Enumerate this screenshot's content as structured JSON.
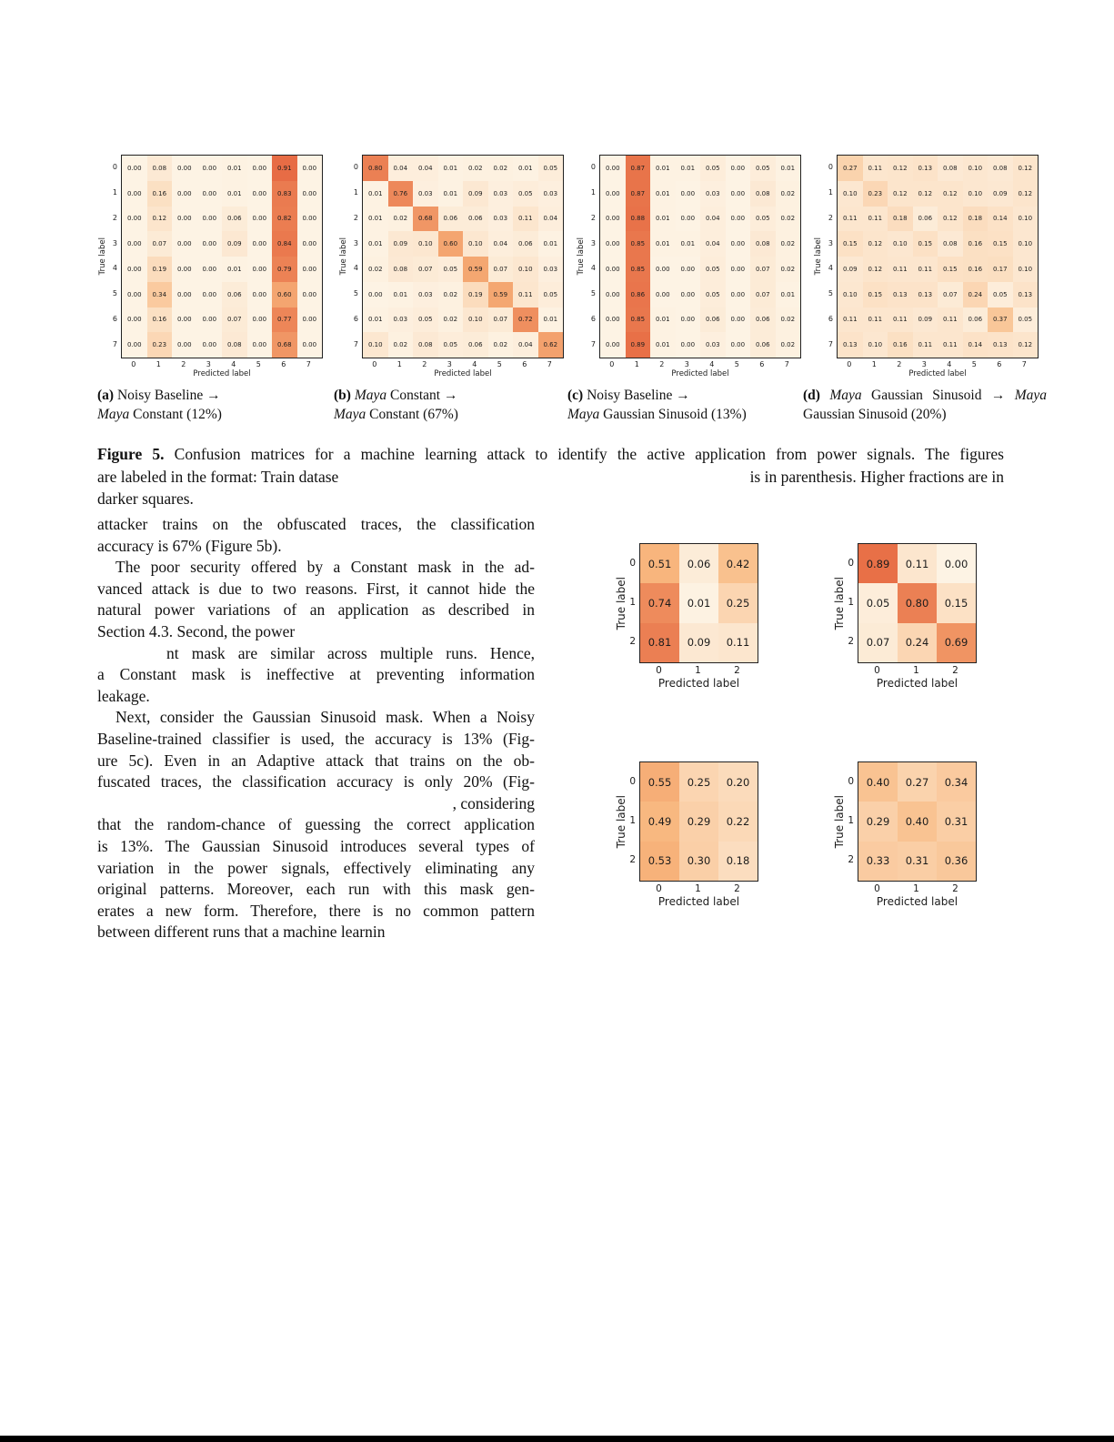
{
  "colors": {
    "heat_stops": [
      "#fdf3e4",
      "#f8b77e",
      "#e35c38"
    ],
    "cell_text": "#1c1c1c",
    "grid_border": "#222222"
  },
  "figure_caption": {
    "line1_bold": "Figure 5.",
    "line1_rest": " Confusion matrices for a machine learning attack to identify the active application from power signals. The figures",
    "line2_left": "are labeled in the format: Train datase",
    "line2_right": "is in parenthesis. Higher fractions are in",
    "line3": "darker squares."
  },
  "body_lines": [
    {
      "text": "attacker trains on the obfuscated traces, the classification",
      "align": "jf",
      "indent": 0
    },
    {
      "text": "accuracy is 67% (Figure 5b).",
      "align": "ll",
      "indent": 0
    },
    {
      "text": "The poor security offered by a Constant mask in the ad-",
      "align": "jf",
      "indent": 20
    },
    {
      "text": "vanced attack is due to two reasons. First, it cannot hide the",
      "align": "jf",
      "indent": 0
    },
    {
      "text": "natural power variations of an application as described in",
      "align": "jf",
      "indent": 0
    },
    {
      "text": "Section 4.3. Second, the power",
      "align": "ll",
      "indent": 0
    },
    {
      "text": "nt mask are similar across multiple runs. Hence,",
      "align": "jf",
      "indent": 76
    },
    {
      "text": "a Constant mask is ineffective at preventing information",
      "align": "jf",
      "indent": 0
    },
    {
      "text": "leakage.",
      "align": "ll",
      "indent": 0
    },
    {
      "text": "Next, consider the Gaussian Sinusoid mask. When a Noisy",
      "align": "jf",
      "indent": 20
    },
    {
      "text": "Baseline-trained classifier is used, the accuracy is 13% (Fig-",
      "align": "jf",
      "indent": 0
    },
    {
      "text": "ure 5c). Even in an Adaptive attack that trains on the ob-",
      "align": "jf",
      "indent": 0
    },
    {
      "text": "fuscated traces, the classification accuracy is only 20% (Fig-",
      "align": "jf",
      "indent": 0
    },
    {
      "text": ", considering",
      "align": "rr",
      "indent": 0
    },
    {
      "text": "that the random-chance of guessing the correct application",
      "align": "jf",
      "indent": 0
    },
    {
      "text": "is 13%. The Gaussian Sinusoid introduces several types of",
      "align": "jf",
      "indent": 0
    },
    {
      "text": "variation in the power signals, effectively eliminating any",
      "align": "jf",
      "indent": 0
    },
    {
      "text": "original patterns. Moreover, each run with this mask gen-",
      "align": "jf",
      "indent": 0
    },
    {
      "text": "erates a new form. Therefore, there is no common pattern",
      "align": "jf",
      "indent": 0
    },
    {
      "text": "between different runs that a machine learnin",
      "align": "ll",
      "indent": 0
    }
  ],
  "chart_data": [
    {
      "id": "a",
      "type": "heatmap",
      "title": "(a) Noisy Baseline → Maya Constant (12%)",
      "accuracy": "12%",
      "xlabel": "Predicted label",
      "ylabel": "True label",
      "x_ticks": [
        "0",
        "1",
        "2",
        "3",
        "4",
        "5",
        "6",
        "7"
      ],
      "y_ticks": [
        "0",
        "1",
        "2",
        "3",
        "4",
        "5",
        "6",
        "7"
      ],
      "values": [
        [
          0.0,
          0.08,
          0.0,
          0.0,
          0.01,
          0.0,
          0.91,
          0.0
        ],
        [
          0.0,
          0.16,
          0.0,
          0.0,
          0.01,
          0.0,
          0.83,
          0.0
        ],
        [
          0.0,
          0.12,
          0.0,
          0.0,
          0.06,
          0.0,
          0.82,
          0.0
        ],
        [
          0.0,
          0.07,
          0.0,
          0.0,
          0.09,
          0.0,
          0.84,
          0.0
        ],
        [
          0.0,
          0.19,
          0.0,
          0.0,
          0.01,
          0.0,
          0.79,
          0.0
        ],
        [
          0.0,
          0.34,
          0.0,
          0.0,
          0.06,
          0.0,
          0.6,
          0.0
        ],
        [
          0.0,
          0.16,
          0.0,
          0.0,
          0.07,
          0.0,
          0.77,
          0.0
        ],
        [
          0.0,
          0.23,
          0.0,
          0.0,
          0.08,
          0.0,
          0.68,
          0.0
        ]
      ],
      "caption_lines": [
        [
          {
            "t": "(a)",
            "b": 1
          },
          {
            "t": " Noisy Baseline →"
          }
        ],
        [
          {
            "t": "Maya",
            "i": 1
          },
          {
            "t": " Constant (12%)"
          }
        ]
      ]
    },
    {
      "id": "b",
      "type": "heatmap",
      "title": "(b) Maya Constant → Maya Constant (67%)",
      "accuracy": "67%",
      "xlabel": "Predicted label",
      "ylabel": "True label",
      "x_ticks": [
        "0",
        "1",
        "2",
        "3",
        "4",
        "5",
        "6",
        "7"
      ],
      "y_ticks": [
        "0",
        "1",
        "2",
        "3",
        "4",
        "5",
        "6",
        "7"
      ],
      "values": [
        [
          0.8,
          0.04,
          0.04,
          0.01,
          0.02,
          0.02,
          0.01,
          0.05
        ],
        [
          0.01,
          0.76,
          0.03,
          0.01,
          0.09,
          0.03,
          0.05,
          0.03
        ],
        [
          0.01,
          0.02,
          0.68,
          0.06,
          0.06,
          0.03,
          0.11,
          0.04
        ],
        [
          0.01,
          0.09,
          0.1,
          0.6,
          0.1,
          0.04,
          0.06,
          0.01
        ],
        [
          0.02,
          0.08,
          0.07,
          0.05,
          0.59,
          0.07,
          0.1,
          0.03
        ],
        [
          0.0,
          0.01,
          0.03,
          0.02,
          0.19,
          0.59,
          0.11,
          0.05
        ],
        [
          0.01,
          0.03,
          0.05,
          0.02,
          0.1,
          0.07,
          0.72,
          0.01
        ],
        [
          0.1,
          0.02,
          0.08,
          0.05,
          0.06,
          0.02,
          0.04,
          0.62
        ]
      ],
      "caption_lines": [
        [
          {
            "t": "(b)",
            "b": 1
          },
          {
            "t": " "
          },
          {
            "t": "Maya",
            "i": 1
          },
          {
            "t": " Constant →"
          }
        ],
        [
          {
            "t": "Maya",
            "i": 1
          },
          {
            "t": " Constant (67%)"
          }
        ]
      ]
    },
    {
      "id": "c",
      "type": "heatmap",
      "title": "(c) Noisy Baseline → Maya Gaussian Sinusoid (13%)",
      "accuracy": "13%",
      "xlabel": "Predicted label",
      "ylabel": "True label",
      "x_ticks": [
        "0",
        "1",
        "2",
        "3",
        "4",
        "5",
        "6",
        "7"
      ],
      "y_ticks": [
        "0",
        "1",
        "2",
        "3",
        "4",
        "5",
        "6",
        "7"
      ],
      "values": [
        [
          0.0,
          0.87,
          0.01,
          0.01,
          0.05,
          0.0,
          0.05,
          0.01
        ],
        [
          0.0,
          0.87,
          0.01,
          0.0,
          0.03,
          0.0,
          0.08,
          0.02
        ],
        [
          0.0,
          0.88,
          0.01,
          0.0,
          0.04,
          0.0,
          0.05,
          0.02
        ],
        [
          0.0,
          0.85,
          0.01,
          0.01,
          0.04,
          0.0,
          0.08,
          0.02
        ],
        [
          0.0,
          0.85,
          0.0,
          0.0,
          0.05,
          0.0,
          0.07,
          0.02
        ],
        [
          0.0,
          0.86,
          0.0,
          0.0,
          0.05,
          0.0,
          0.07,
          0.01
        ],
        [
          0.0,
          0.85,
          0.01,
          0.0,
          0.06,
          0.0,
          0.06,
          0.02
        ],
        [
          0.0,
          0.89,
          0.01,
          0.0,
          0.03,
          0.0,
          0.06,
          0.02
        ]
      ],
      "caption_lines": [
        [
          {
            "t": "(c)",
            "b": 1
          },
          {
            "t": " Noisy Baseline →"
          }
        ],
        [
          {
            "t": "Maya",
            "i": 1
          },
          {
            "t": " Gaussian Sinusoid (13%)"
          }
        ]
      ]
    },
    {
      "id": "d",
      "type": "heatmap",
      "title": "(d) Maya Gaussian Sinusoid → Maya Gaussian Sinusoid (20%)",
      "accuracy": "20%",
      "xlabel": "Predicted label",
      "ylabel": "True label",
      "x_ticks": [
        "0",
        "1",
        "2",
        "3",
        "4",
        "5",
        "6",
        "7"
      ],
      "y_ticks": [
        "0",
        "1",
        "2",
        "3",
        "4",
        "5",
        "6",
        "7"
      ],
      "values": [
        [
          0.27,
          0.11,
          0.12,
          0.13,
          0.08,
          0.1,
          0.08,
          0.12
        ],
        [
          0.1,
          0.23,
          0.12,
          0.12,
          0.12,
          0.1,
          0.09,
          0.12
        ],
        [
          0.11,
          0.11,
          0.18,
          0.06,
          0.12,
          0.18,
          0.14,
          0.1
        ],
        [
          0.15,
          0.12,
          0.1,
          0.15,
          0.08,
          0.16,
          0.15,
          0.1
        ],
        [
          0.09,
          0.12,
          0.11,
          0.11,
          0.15,
          0.16,
          0.17,
          0.1
        ],
        [
          0.1,
          0.15,
          0.13,
          0.13,
          0.07,
          0.24,
          0.05,
          0.13
        ],
        [
          0.11,
          0.11,
          0.11,
          0.09,
          0.11,
          0.06,
          0.37,
          0.05
        ],
        [
          0.13,
          0.1,
          0.16,
          0.11,
          0.11,
          0.14,
          0.13,
          0.12
        ]
      ],
      "caption_lines": [
        [
          {
            "t": "(d)",
            "b": 1
          },
          {
            "t": " "
          },
          {
            "t": "Maya",
            "i": 1
          },
          {
            "t": " Gaussian Sinusoid → "
          },
          {
            "t": "Maya",
            "i": 1
          }
        ],
        [
          {
            "t": "Gaussian Sinusoid (20%)"
          }
        ]
      ]
    },
    {
      "id": "s1",
      "type": "heatmap",
      "xlabel": "Predicted label",
      "ylabel": "True label",
      "x_ticks": [
        "0",
        "1",
        "2"
      ],
      "y_ticks": [
        "0",
        "1",
        "2"
      ],
      "values": [
        [
          0.51,
          0.06,
          0.42
        ],
        [
          0.74,
          0.01,
          0.25
        ],
        [
          0.81,
          0.09,
          0.11
        ]
      ]
    },
    {
      "id": "s2",
      "type": "heatmap",
      "xlabel": "Predicted label",
      "ylabel": "True label",
      "x_ticks": [
        "0",
        "1",
        "2"
      ],
      "y_ticks": [
        "0",
        "1",
        "2"
      ],
      "values": [
        [
          0.89,
          0.11,
          0.0
        ],
        [
          0.05,
          0.8,
          0.15
        ],
        [
          0.07,
          0.24,
          0.69
        ]
      ]
    },
    {
      "id": "s3",
      "type": "heatmap",
      "xlabel": "Predicted label",
      "ylabel": "True label",
      "x_ticks": [
        "0",
        "1",
        "2"
      ],
      "y_ticks": [
        "0",
        "1",
        "2"
      ],
      "values": [
        [
          0.55,
          0.25,
          0.2
        ],
        [
          0.49,
          0.29,
          0.22
        ],
        [
          0.53,
          0.3,
          0.18
        ]
      ]
    },
    {
      "id": "s4",
      "type": "heatmap",
      "xlabel": "Predicted label",
      "ylabel": "True label",
      "x_ticks": [
        "0",
        "1",
        "2"
      ],
      "y_ticks": [
        "0",
        "1",
        "2"
      ],
      "values": [
        [
          0.4,
          0.27,
          0.34
        ],
        [
          0.29,
          0.4,
          0.31
        ],
        [
          0.33,
          0.31,
          0.36
        ]
      ]
    }
  ]
}
